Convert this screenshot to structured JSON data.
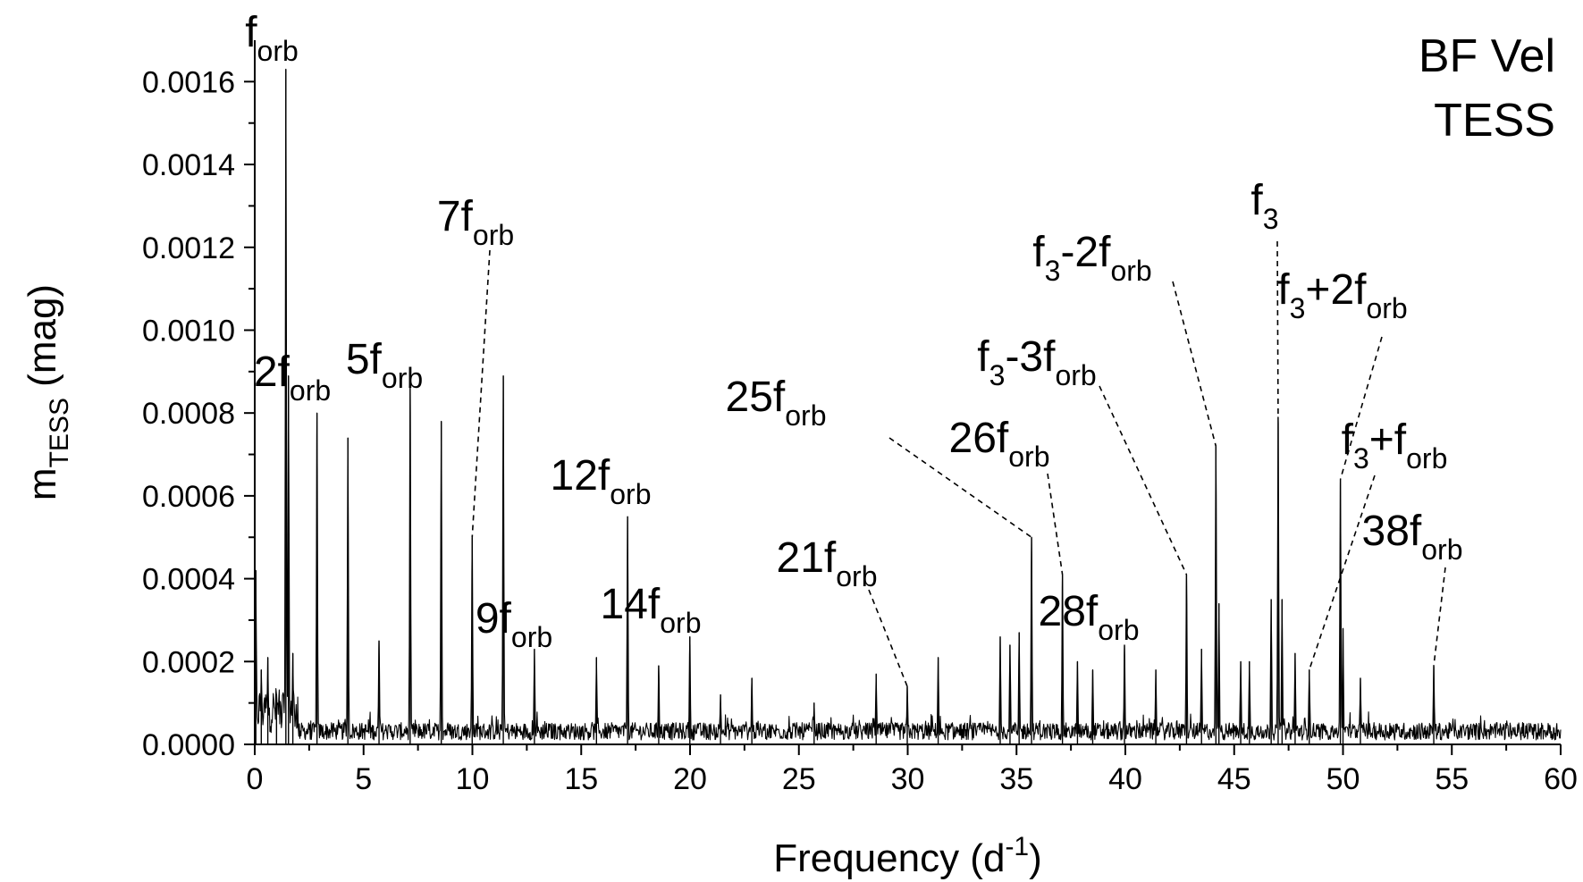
{
  "chart_data": {
    "type": "line",
    "title_lines": [
      "BF Vel",
      "TESS"
    ],
    "xlabel": {
      "base": "Frequency (d",
      "sup": "-1",
      "end": ")"
    },
    "ylabel": {
      "base": "m",
      "sub": "TESS",
      "end": " (mag)"
    },
    "xlim": [
      0,
      60
    ],
    "ylim": [
      0,
      0.0017
    ],
    "xticks": [
      0,
      5,
      10,
      15,
      20,
      25,
      30,
      35,
      40,
      45,
      50,
      55,
      60
    ],
    "xtick_labels": [
      "0",
      "5",
      "10",
      "15",
      "20",
      "25",
      "30",
      "35",
      "40",
      "45",
      "50",
      "55",
      "60"
    ],
    "yticks": [
      0,
      0.0002,
      0.0004,
      0.0006,
      0.0008,
      0.001,
      0.0012,
      0.0014,
      0.0016
    ],
    "ytick_labels": [
      "0.0000",
      "0.0002",
      "0.0004",
      "0.0006",
      "0.0008",
      "0.0010",
      "0.0012",
      "0.0014",
      "0.0016"
    ],
    "grid": false,
    "series": [
      {
        "peaks": [
          {
            "x": 0.05,
            "y": 0.00042
          },
          {
            "x": 0.3,
            "y": 0.00018
          },
          {
            "x": 0.6,
            "y": 0.00021
          },
          {
            "x": 1.0,
            "y": 0.00012
          },
          {
            "x": 1.43,
            "y": 0.00163
          },
          {
            "x": 1.55,
            "y": 0.00089
          },
          {
            "x": 1.75,
            "y": 0.00022
          },
          {
            "x": 2.86,
            "y": 0.0008
          },
          {
            "x": 4.28,
            "y": 0.00074
          },
          {
            "x": 5.71,
            "y": 0.00025
          },
          {
            "x": 7.14,
            "y": 0.00087
          },
          {
            "x": 8.57,
            "y": 0.00078
          },
          {
            "x": 9.99,
            "y": 0.0005
          },
          {
            "x": 11.42,
            "y": 0.00089
          },
          {
            "x": 12.85,
            "y": 0.00023
          },
          {
            "x": 15.7,
            "y": 0.00021
          },
          {
            "x": 17.13,
            "y": 0.00055
          },
          {
            "x": 18.56,
            "y": 0.00019
          },
          {
            "x": 19.99,
            "y": 0.00026
          },
          {
            "x": 21.4,
            "y": 0.00012
          },
          {
            "x": 22.84,
            "y": 0.00016
          },
          {
            "x": 25.7,
            "y": 0.0001
          },
          {
            "x": 28.55,
            "y": 0.00017
          },
          {
            "x": 29.98,
            "y": 0.00014
          },
          {
            "x": 31.4,
            "y": 0.00021
          },
          {
            "x": 34.25,
            "y": 0.00026
          },
          {
            "x": 34.7,
            "y": 0.00024
          },
          {
            "x": 35.12,
            "y": 0.00027
          },
          {
            "x": 35.69,
            "y": 0.0005
          },
          {
            "x": 37.11,
            "y": 0.00041
          },
          {
            "x": 37.8,
            "y": 0.0002
          },
          {
            "x": 38.5,
            "y": 0.00018
          },
          {
            "x": 39.96,
            "y": 0.00024
          },
          {
            "x": 41.4,
            "y": 0.00018
          },
          {
            "x": 42.81,
            "y": 0.00041
          },
          {
            "x": 43.5,
            "y": 0.00023
          },
          {
            "x": 44.16,
            "y": 0.00072
          },
          {
            "x": 44.3,
            "y": 0.00034
          },
          {
            "x": 45.3,
            "y": 0.0002
          },
          {
            "x": 45.7,
            "y": 0.0002
          },
          {
            "x": 46.7,
            "y": 0.00035
          },
          {
            "x": 47.02,
            "y": 0.00079
          },
          {
            "x": 47.2,
            "y": 0.00035
          },
          {
            "x": 47.8,
            "y": 0.00022
          },
          {
            "x": 48.45,
            "y": 0.00018
          },
          {
            "x": 49.88,
            "y": 0.00064
          },
          {
            "x": 50.0,
            "y": 0.00028
          },
          {
            "x": 50.8,
            "y": 0.00016
          },
          {
            "x": 54.17,
            "y": 0.00019
          }
        ]
      }
    ],
    "annotations": [
      {
        "base": "f",
        "sub": "orb",
        "x": 1.43,
        "y": 0.00163,
        "dashed": false
      },
      {
        "base": "2f",
        "sub": "orb",
        "x": 2.86,
        "y": 0.0008,
        "dashed": false
      },
      {
        "base": "5f",
        "sub": "orb",
        "x": 7.14,
        "y": 0.00087,
        "dashed": false
      },
      {
        "base": "7f",
        "sub": "orb",
        "x": 9.99,
        "y": 0.0005,
        "dashed": true
      },
      {
        "base": "9f",
        "sub": "orb",
        "x": 12.85,
        "y": 0.00023,
        "dashed": false
      },
      {
        "base": "12f",
        "sub": "orb",
        "x": 17.13,
        "y": 0.00055,
        "dashed": false
      },
      {
        "base": "14f",
        "sub": "orb",
        "x": 19.99,
        "y": 0.00026,
        "dashed": false
      },
      {
        "base": "21f",
        "sub": "orb",
        "x": 29.98,
        "y": 0.00014,
        "dashed": true
      },
      {
        "base": "25f",
        "sub": "orb",
        "x": 35.69,
        "y": 0.0005,
        "dashed": true
      },
      {
        "base": "26f",
        "sub": "orb",
        "x": 37.11,
        "y": 0.00041,
        "dashed": true
      },
      {
        "base": "28f",
        "sub": "orb",
        "x": 39.96,
        "y": 0.00024,
        "dashed": false
      },
      {
        "base": "f",
        "sub": "3",
        "rest": "-3f",
        "sub2": "orb",
        "x": 42.81,
        "y": 0.00041,
        "dashed": true
      },
      {
        "base": "f",
        "sub": "3",
        "rest": "-2f",
        "sub2": "orb",
        "x": 44.16,
        "y": 0.00072,
        "dashed": true
      },
      {
        "base": "f",
        "sub": "3",
        "x": 47.02,
        "y": 0.00079,
        "dashed": true
      },
      {
        "base": "f",
        "sub": "3",
        "rest": "+2f",
        "sub2": "orb",
        "x": 49.88,
        "y": 0.00064,
        "dashed": true
      },
      {
        "base": "f",
        "sub": "3",
        "rest": "+f",
        "sub2": "orb",
        "x": 48.45,
        "y": 0.00018,
        "dashed": true
      },
      {
        "base": "38f",
        "sub": "orb",
        "x": 54.17,
        "y": 0.00019,
        "dashed": true
      }
    ]
  }
}
